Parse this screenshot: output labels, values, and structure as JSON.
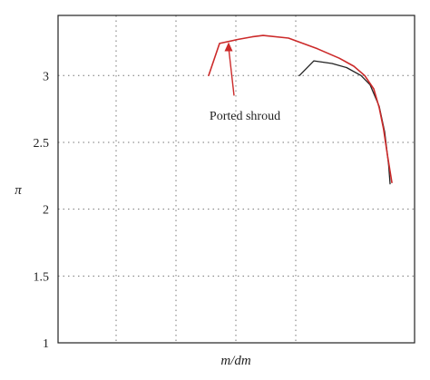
{
  "chart_data": {
    "type": "line",
    "title": "",
    "xlabel": "m/dm",
    "ylabel": "π",
    "ylim": [
      1,
      3.45
    ],
    "xlim": [
      0,
      1
    ],
    "y_ticks": [
      1,
      1.5,
      2,
      2.5,
      3
    ],
    "y_tick_labels": [
      "1",
      "1.5",
      "2",
      "2.5",
      "3"
    ],
    "x_gridlines": [
      0.2,
      0.4,
      0.6,
      0.8
    ],
    "x_tick_labels_shown": false,
    "grid": true,
    "grid_style": "dotted",
    "series": [
      {
        "color": "#222222",
        "x": [
          0.75,
          0.79,
          0.84,
          0.88,
          0.92,
          0.945,
          0.97,
          0.985,
          0.996,
          1.0
        ],
        "y": [
          3.0,
          3.11,
          3.09,
          3.06,
          3.0,
          2.93,
          2.77,
          2.58,
          2.33,
          2.19
        ]
      },
      {
        "color": "#cc2a2a",
        "x": [
          0.5,
          0.53,
          0.58,
          0.62,
          0.65,
          0.72,
          0.8,
          0.86,
          0.9,
          0.93,
          0.955,
          0.97,
          0.982,
          0.993,
          1.005
        ],
        "y": [
          3.0,
          3.24,
          3.27,
          3.29,
          3.3,
          3.28,
          3.2,
          3.13,
          3.07,
          3.0,
          2.9,
          2.76,
          2.6,
          2.4,
          2.2
        ]
      }
    ],
    "annotations": [
      {
        "text": "Ported shroud",
        "arrow_from": [
          0.59,
          2.85
        ],
        "arrow_to": [
          0.575,
          3.25
        ]
      }
    ]
  }
}
